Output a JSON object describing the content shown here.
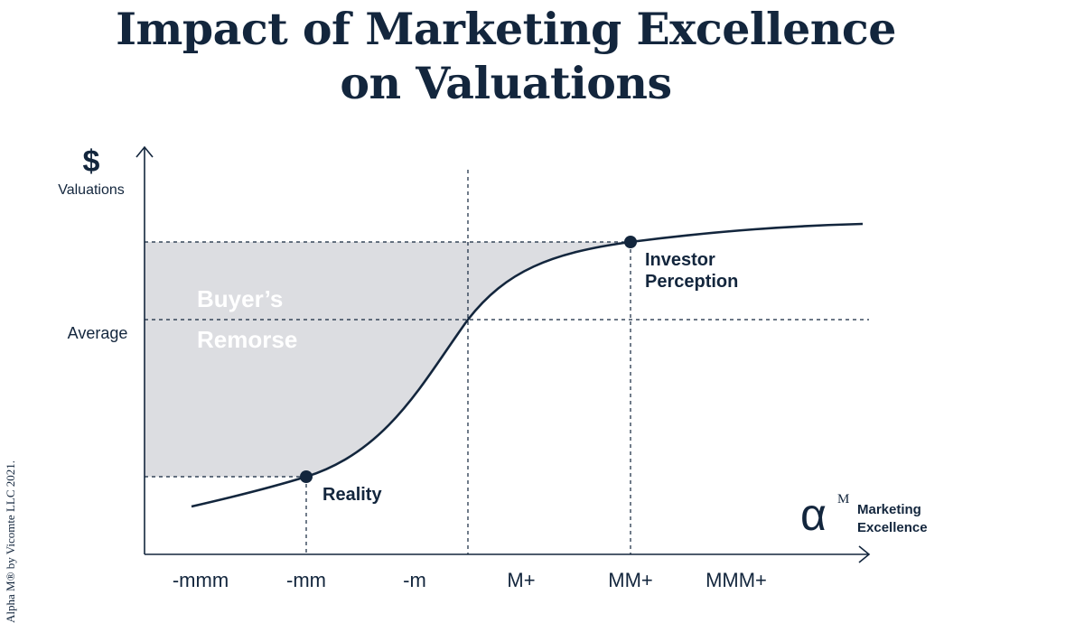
{
  "title": {
    "line1": "Impact of Marketing Excellence",
    "line2": "on Valuations"
  },
  "y_axis": {
    "symbol": "$",
    "label": "Valuations",
    "average_label": "Average"
  },
  "x_axis": {
    "symbol": "α",
    "superscript": "M",
    "label_line1": "Marketing",
    "label_line2": "Excellence",
    "ticks": [
      "-mmm",
      "-mm",
      "-m",
      "M+",
      "MM+",
      "MMM+"
    ]
  },
  "points": {
    "reality": "Reality",
    "investor_line1": "Investor",
    "investor_line2": "Perception"
  },
  "region": {
    "line1": "Buyer’s",
    "line2": "Remorse"
  },
  "copyright": "Alpha M® by Vicomte LLC 2021.",
  "colors": {
    "ink": "#13263d",
    "shade": "#dcdde1",
    "region_text": "#ffffff"
  }
}
